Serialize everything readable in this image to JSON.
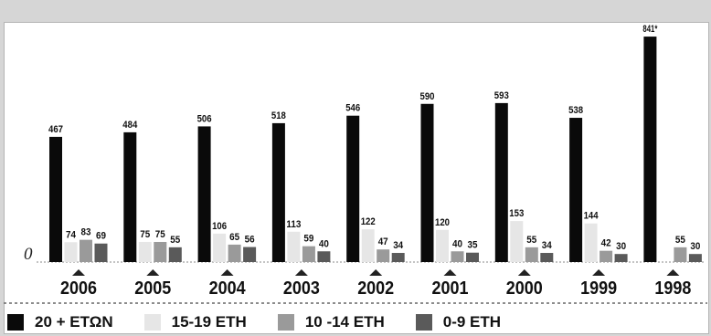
{
  "chart_data": {
    "type": "bar",
    "categories": [
      "2006",
      "2005",
      "2004",
      "2003",
      "2002",
      "2001",
      "2000",
      "1999",
      "1998"
    ],
    "series": [
      {
        "name": "20 + ΕΤΩΝ",
        "color": "#0a0a0a",
        "values": [
          467,
          484,
          506,
          518,
          546,
          590,
          593,
          538,
          841
        ]
      },
      {
        "name": "15-19 ΕΤΗ",
        "color": "#e6e6e6",
        "values": [
          74,
          75,
          106,
          113,
          122,
          120,
          153,
          144,
          null
        ]
      },
      {
        "name": "10 -14 ΕΤΗ",
        "color": "#9a9a9a",
        "values": [
          83,
          75,
          65,
          59,
          47,
          40,
          55,
          42,
          55
        ]
      },
      {
        "name": "0-9 ΕΤΗ",
        "color": "#5a5a5a",
        "values": [
          69,
          55,
          56,
          40,
          34,
          35,
          34,
          30,
          30
        ]
      }
    ],
    "value_labels": [
      [
        "467",
        "484",
        "506",
        "518",
        "546",
        "590",
        "593",
        "538",
        "841*"
      ],
      [
        "74",
        "75",
        "106",
        "113",
        "122",
        "120",
        "153",
        "144",
        ""
      ],
      [
        "83",
        "75",
        "65",
        "59",
        "47",
        "40",
        "55",
        "42",
        "55"
      ],
      [
        "69",
        "55",
        "56",
        "40",
        "34",
        "35",
        "34",
        "30",
        "30"
      ]
    ],
    "baseline_label": "0",
    "ylim": [
      0,
      880
    ],
    "legend_position": "bottom"
  }
}
